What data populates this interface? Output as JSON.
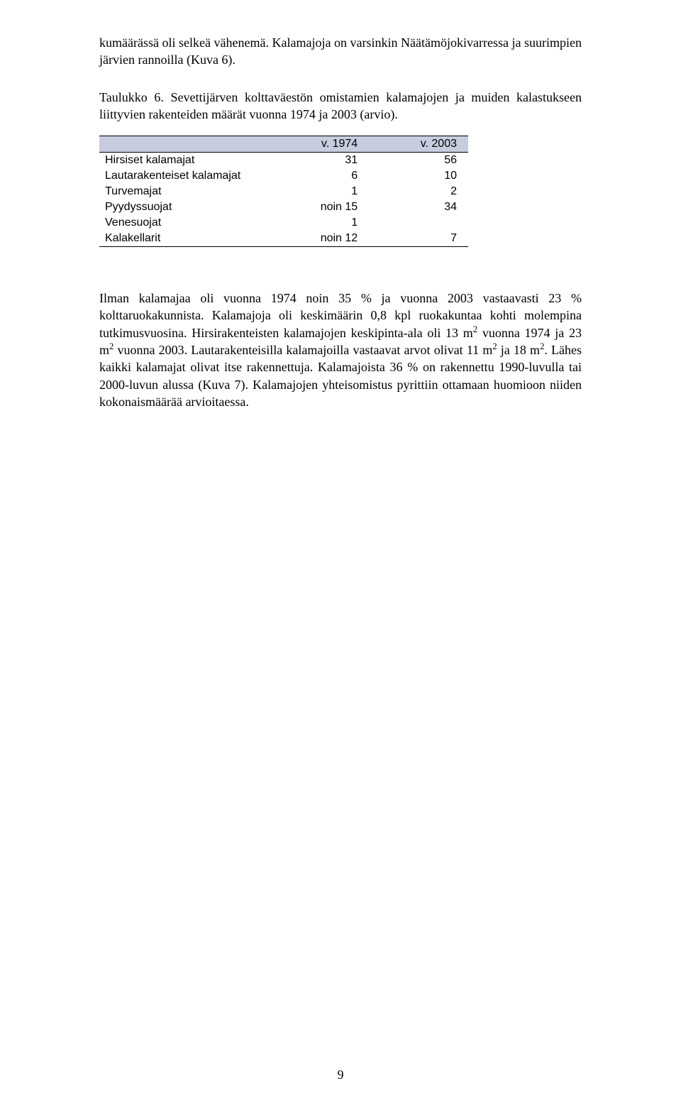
{
  "paragraphs": {
    "p1": "kumäärässä oli selkeä vähenemä. Kalamajoja on varsinkin Näätämöjokivarressa ja suurimpien järvien rannoilla (Kuva 6).",
    "caption": "Taulukko 6. Sevettijärven kolttaväestön omistamien kalamajojen ja muiden kalastukseen liittyvien rakenteiden määrät vuonna 1974 ja 2003 (arvio).",
    "p2_html": "Ilman kalamajaa oli vuonna 1974 noin 35 % ja vuonna 2003 vastaavasti 23 % kolttaruokakunnista. Kalamajoja oli keskimäärin 0,8 kpl ruokakuntaa kohti molempina tutkimusvuosina. Hirsirakenteisten kalamajojen keskipinta-ala oli 13 m<sup>2</sup> vuonna 1974 ja 23 m<sup>2</sup> vuonna 2003. Lautarakenteisilla kalamajoilla vastaavat arvot olivat 11 m<sup>2</sup> ja 18 m<sup>2</sup>. Lähes kaikki kalamajat olivat itse rakennettuja. Kalamajoista 36 % on rakennettu 1990-luvulla tai 2000-luvun alussa (Kuva 7). Kalamajojen yhteisomistus pyrittiin ottamaan huomioon niiden kokonaismäärää arvioitaessa."
  },
  "table": {
    "type": "table",
    "header_bg": "#c7cdde",
    "border_color": "#000000",
    "font_family": "Arial",
    "columns": [
      "",
      "v. 1974",
      "v. 2003"
    ],
    "rows": [
      [
        "Hirsiset kalamajat",
        "31",
        "56"
      ],
      [
        "Lautarakenteiset kalamajat",
        "6",
        "10"
      ],
      [
        "Turvemajat",
        "1",
        "2"
      ],
      [
        "Pyydyssuojat",
        "noin 15",
        "34"
      ],
      [
        "Venesuojat",
        "1",
        ""
      ],
      [
        "Kalakellarit",
        "noin 12",
        "7"
      ]
    ]
  },
  "page_number": "9",
  "colors": {
    "background": "#ffffff",
    "text": "#000000"
  }
}
